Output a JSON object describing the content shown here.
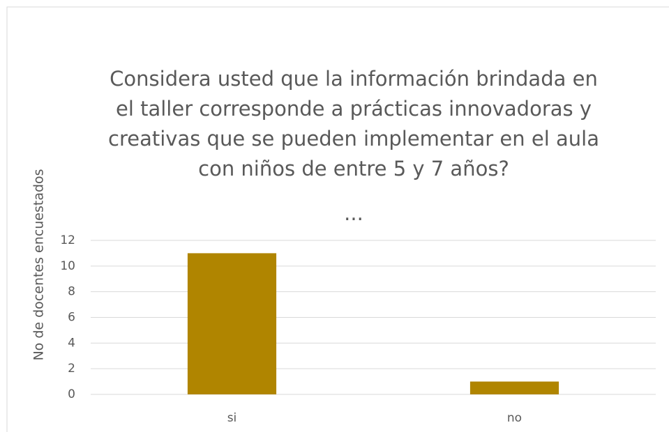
{
  "chart_data": {
    "type": "bar",
    "title": [
      "Considera usted que la información brindada en",
      "el taller corresponde a prácticas innovadoras y",
      "creativas que se pueden implementar en el aula",
      "con niños de entre 5 y 7 años?",
      "..."
    ],
    "y_label": "No de docentes encuestados",
    "categories": [
      "si",
      "no"
    ],
    "values": [
      11,
      1
    ],
    "color": "#b08500",
    "ylim": [
      0,
      12
    ],
    "yticks": [
      0,
      2,
      4,
      6,
      8,
      10,
      12
    ],
    "grid": true
  }
}
